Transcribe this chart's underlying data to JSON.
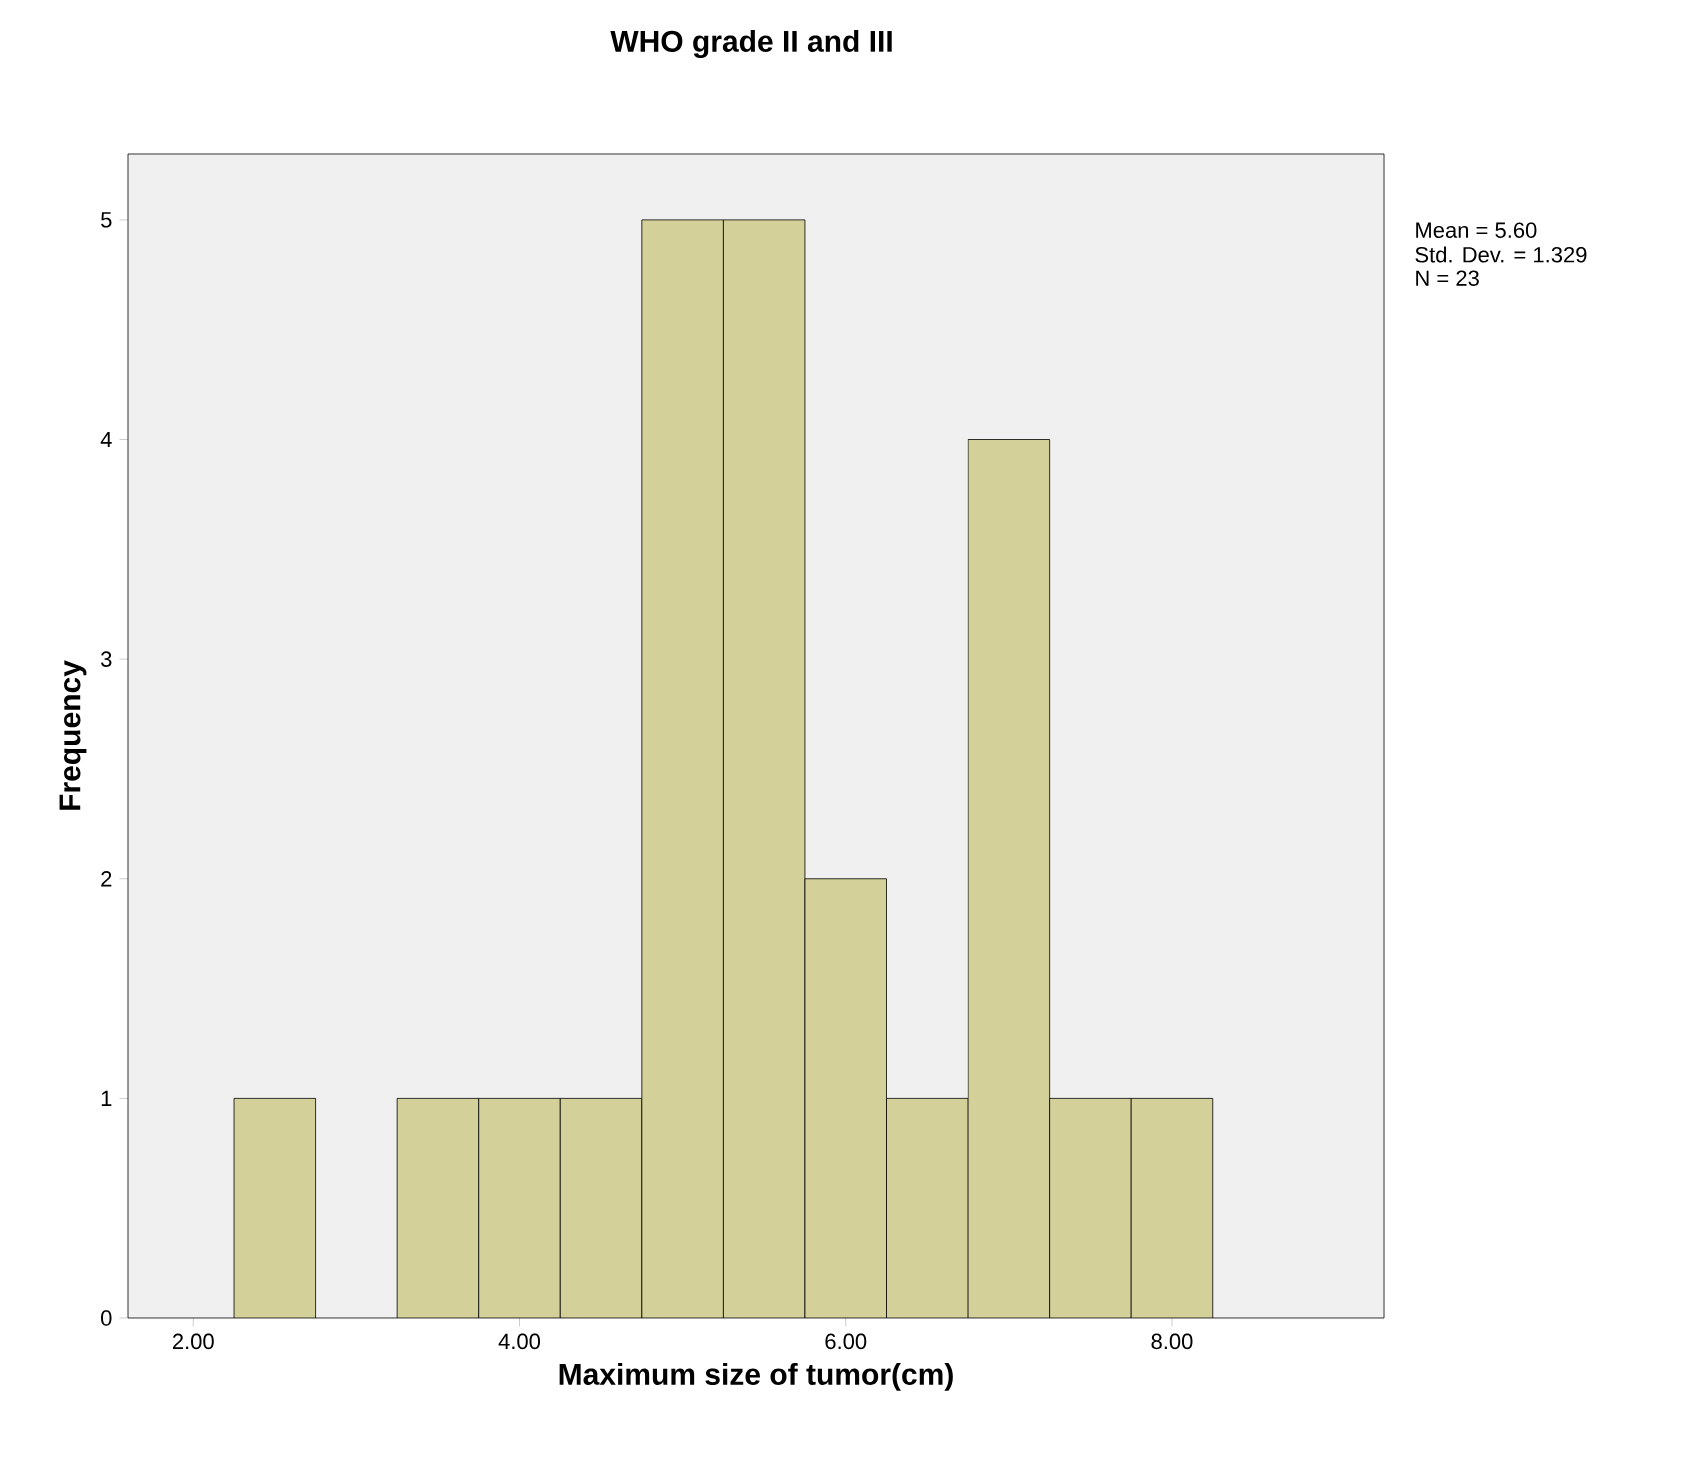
{
  "chart_data": {
    "type": "histogram",
    "title": "WHO grade II and III",
    "xlabel": "Maximum size of tumor(cm)",
    "ylabel": "Frequency",
    "bins": [
      2.25,
      2.75,
      3.25,
      3.75,
      4.25,
      4.75,
      5.25,
      5.75,
      6.25,
      6.75,
      7.25,
      7.75,
      8.25
    ],
    "values": [
      1,
      0,
      1,
      1,
      1,
      5,
      5,
      2,
      1,
      4,
      1,
      1
    ],
    "color": "#d4d09a",
    "xlim": [
      1.6,
      9.3
    ],
    "ylim": [
      0,
      5.3
    ],
    "xticks": [
      {
        "value": 2,
        "label": "2.00"
      },
      {
        "value": 4,
        "label": "4.00"
      },
      {
        "value": 6,
        "label": "6.00"
      },
      {
        "value": 8,
        "label": "8.00"
      }
    ],
    "yticks": [
      0,
      1,
      2,
      3,
      4,
      5
    ],
    "annotations": [
      "Mean = 5.60",
      "Std. Dev. = 1.329",
      "N = 23"
    ]
  }
}
